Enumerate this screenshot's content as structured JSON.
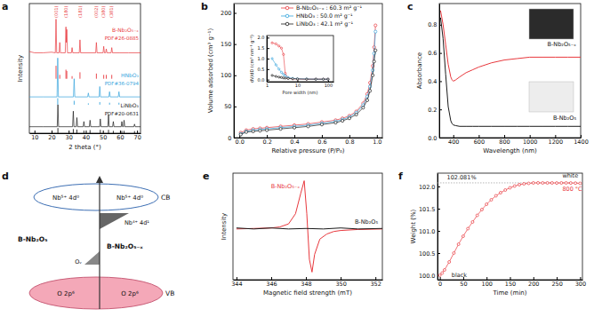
{
  "chart_data": [
    {
      "type": "line",
      "title": "a",
      "x_label": "2 theta (°)",
      "y_label": "Intensity",
      "xlim": [
        7,
        72
      ],
      "xticks": [
        10,
        20,
        30,
        40,
        50,
        60,
        70
      ],
      "ylim": [
        0,
        100
      ],
      "tick_labels": "x",
      "series": [
        {
          "name": "B-Nb₂O₅₋ₓ",
          "color": "#e8383d",
          "x": [
            7,
            10,
            15,
            20,
            22.2,
            22.6,
            23.0,
            24.4,
            24.8,
            25.2,
            26,
            28.0,
            28.4,
            28.65,
            28.9,
            29.3,
            31.6,
            32.0,
            32.4,
            36.2,
            36.6,
            37.0,
            45.8,
            46.2,
            46.6,
            50.1,
            50.5,
            50.9,
            51.6,
            52.0,
            52.4,
            54.8,
            55.2,
            55.6,
            60,
            65,
            72
          ],
          "values": [
            63,
            62,
            62,
            62.5,
            62,
            88,
            62,
            62,
            70,
            62,
            62,
            62,
            82,
            70,
            80,
            62,
            62,
            66,
            62,
            62,
            72,
            62,
            62,
            70,
            62,
            62,
            67,
            62,
            62,
            65,
            62,
            62,
            66,
            62,
            62,
            62,
            62
          ]
        },
        {
          "name": "HNbO₃",
          "color": "#35a4dc",
          "x": [
            7,
            15,
            23.2,
            23.6,
            24.0,
            32.8,
            33.2,
            33.6,
            41.1,
            41.5,
            41.9,
            47.8,
            48.2,
            48.6,
            53.5,
            53.9,
            54.3,
            59.0,
            59.4,
            59.8,
            72
          ],
          "values": [
            28,
            28,
            28,
            58,
            28,
            28,
            42,
            28,
            28,
            31,
            28,
            28,
            36,
            28,
            28,
            32,
            28,
            28,
            32,
            28,
            28
          ]
        },
        {
          "name": "LiNbO₃",
          "color": "#1a1a1a",
          "x": [
            7,
            15,
            23.3,
            23.7,
            24.1,
            32.3,
            32.7,
            33.1,
            34.4,
            34.8,
            35.2,
            38.5,
            38.9,
            39.3,
            42.1,
            42.5,
            42.9,
            48.1,
            48.5,
            48.9,
            52.9,
            53.3,
            53.7,
            55.7,
            56.1,
            56.5,
            60.7,
            61.1,
            61.5,
            62.0,
            62.4,
            62.8,
            68.1,
            68.5,
            68.9,
            72
          ],
          "values": [
            5,
            5,
            5,
            22,
            5,
            5,
            17,
            5,
            5,
            12,
            5,
            5,
            9,
            5,
            5,
            10,
            5,
            5,
            11,
            5,
            5,
            14,
            5,
            5,
            9,
            5,
            5,
            9,
            5,
            5,
            10,
            5,
            5,
            7,
            5,
            5
          ]
        }
      ],
      "references": [
        {
          "name": "PDF#26-0885",
          "color": "#e8383d",
          "base": 42,
          "x": [
            22.6,
            24.8,
            28.4,
            28.9,
            32.0,
            36.6,
            46.2,
            50.5,
            52.0,
            55.2
          ],
          "values": [
            52,
            45,
            49,
            48,
            44,
            47,
            46,
            45,
            45,
            45
          ]
        },
        {
          "name": "PDF#36-0794",
          "color": "#35a4dc",
          "base": 22,
          "x": [
            23.6,
            33.2,
            41.5,
            48.2,
            53.9,
            59.4
          ],
          "values": [
            27,
            25,
            23,
            24,
            23.5,
            23.5
          ]
        },
        {
          "name": "PDF#20-0631",
          "color": "#1a1a1a",
          "base": 0,
          "x": [
            23.7,
            32.7,
            34.8,
            38.9,
            42.5,
            48.5,
            53.3,
            56.1,
            61.1,
            62.4,
            68.5
          ],
          "values": [
            4,
            3.2,
            2.8,
            2,
            2.4,
            2.6,
            2.6,
            1.8,
            1.8,
            1.8,
            1.6
          ]
        }
      ],
      "annotations": [
        {
          "text": "(001)",
          "x": 22.6
        },
        {
          "text": "(180)",
          "x": 28.4
        },
        {
          "text": "(181)",
          "x": 36.6
        },
        {
          "text": "(002)",
          "x": 46.2
        },
        {
          "text": "(380)",
          "x": 50.5
        },
        {
          "text": "(381)",
          "x": 55.2
        }
      ]
    },
    {
      "type": "line",
      "title": "b",
      "x_label": "Relative pressure (P/P₀)",
      "y_label": "Volume adsorbed (cm³ g⁻¹)",
      "xlim": [
        -0.04,
        1.04
      ],
      "xticks": [
        {
          "value": 0,
          "label": "0.0"
        },
        0.2,
        0.4,
        0.6,
        0.8,
        {
          "value": 1,
          "label": "1.0"
        }
      ],
      "ylim": [
        0,
        215
      ],
      "yticks": [
        0,
        50,
        100,
        150,
        200
      ],
      "legend": "top",
      "x": [
        0.01,
        0.05,
        0.1,
        0.15,
        0.2,
        0.3,
        0.4,
        0.5,
        0.6,
        0.7,
        0.75,
        0.8,
        0.85,
        0.9,
        0.93,
        0.95,
        0.97,
        0.98,
        0.99
      ],
      "series": [
        {
          "name": "B-Nb₂O₅₋ₓ : 60.3 m² g⁻¹",
          "color": "#e8383d",
          "marker": "circle",
          "values": [
            8,
            12,
            14,
            15,
            16,
            18,
            20,
            22,
            25,
            28,
            31,
            35,
            42,
            55,
            70,
            88,
            115,
            145,
            180
          ]
        },
        {
          "name": "HNbO₃ : 50.0 m² g⁻¹",
          "color": "#35a4dc",
          "marker": "circle",
          "values": [
            6,
            10,
            12,
            13,
            14,
            16,
            18,
            20,
            23,
            26,
            29,
            33,
            40,
            52,
            66,
            82,
            108,
            135,
            170
          ]
        },
        {
          "name": "LiNbO₃ : 42.1 m² g⁻¹",
          "color": "#1a1a1a",
          "marker": "circle",
          "values": [
            5,
            9,
            10,
            11,
            12,
            14,
            16,
            18,
            21,
            24,
            27,
            31,
            37,
            48,
            60,
            75,
            100,
            122,
            140
          ]
        }
      ]
    },
    {
      "type": "line",
      "log": "x",
      "x_label": "Pore width (nm)",
      "y_label": "dV/dD (cm³ nm⁻¹ g⁻¹)",
      "xlim": [
        1,
        150
      ],
      "xticks": [
        1,
        10,
        100
      ],
      "ylim": [
        -0.1,
        2.1
      ],
      "yticks": [
        {
          "value": 0,
          "label": "0.0"
        },
        0.5,
        {
          "value": 1,
          "label": "1.0"
        },
        1.5,
        {
          "value": 2,
          "label": "2.0"
        }
      ],
      "x": [
        1.5,
        2,
        2.5,
        3,
        3.5,
        4,
        5,
        7,
        10,
        20,
        40,
        70,
        100
      ],
      "series": [
        {
          "color": "#e8383d",
          "marker": "circle",
          "values": [
            1.75,
            1.7,
            1.6,
            1.5,
            1.2,
            0.3,
            0.08,
            0.04,
            0.03,
            0.02,
            0.02,
            0.02,
            0.02
          ]
        },
        {
          "color": "#35a4dc",
          "marker": "circle",
          "values": [
            1.0,
            0.7,
            0.5,
            0.35,
            0.25,
            0.18,
            0.1,
            0.06,
            0.04,
            0.03,
            0.02,
            0.02,
            0.02
          ]
        },
        {
          "color": "#1a1a1a",
          "marker": "circle",
          "values": [
            0.2,
            0.15,
            0.12,
            0.1,
            0.08,
            0.07,
            0.05,
            0.04,
            0.03,
            0.02,
            0.02,
            0.02,
            0.02
          ]
        }
      ]
    },
    {
      "type": "line",
      "title": "c",
      "x_label": "Wavelength (nm)",
      "y_label": "Absorbance",
      "xlim": [
        290,
        1400
      ],
      "xticks": [
        400,
        600,
        800,
        1000,
        1200,
        1400
      ],
      "ylim": [
        0,
        0.95
      ],
      "yticks": [
        {
          "value": 0,
          "label": "0.0"
        },
        0.2,
        0.4,
        0.6,
        0.8
      ],
      "x": [
        300,
        320,
        340,
        360,
        380,
        390,
        400,
        420,
        450,
        500,
        550,
        600,
        700,
        800,
        900,
        1000,
        1100,
        1200,
        1300,
        1400
      ],
      "series": [
        {
          "name": "B-Nb₂O₅₋ₓ",
          "color": "#e8383d",
          "values": [
            0.9,
            0.8,
            0.66,
            0.52,
            0.43,
            0.41,
            0.4,
            0.41,
            0.43,
            0.46,
            0.48,
            0.5,
            0.53,
            0.55,
            0.56,
            0.57,
            0.57,
            0.57,
            0.57,
            0.57
          ]
        },
        {
          "name": "B-Nb₂O₅",
          "color": "#1a1a1a",
          "values": [
            0.85,
            0.7,
            0.45,
            0.22,
            0.12,
            0.1,
            0.09,
            0.085,
            0.08,
            0.08,
            0.08,
            0.08,
            0.08,
            0.08,
            0.08,
            0.08,
            0.08,
            0.08,
            0.08,
            0.08
          ]
        }
      ]
    },
    {
      "type": "line",
      "title": "e",
      "x_label": "Magnetic field strength (mT)",
      "y_label": "Intensity",
      "xlim": [
        343.8,
        352.4
      ],
      "xticks": [
        344,
        346,
        348,
        350,
        352
      ],
      "ylim": [
        -1,
        1.1
      ],
      "tick_labels": "x",
      "series": [
        {
          "name": "B-Nb₂O₅₋ₓ",
          "color": "#e8383d",
          "x": [
            344,
            345,
            346,
            346.5,
            347,
            347.4,
            347.7,
            347.9,
            348.05,
            348.2,
            348.35,
            348.5,
            348.8,
            349.2,
            349.6,
            350,
            351,
            352.4
          ],
          "values": [
            0,
            0.01,
            0.02,
            0.04,
            0.1,
            0.3,
            0.7,
            0.95,
            0.3,
            -0.6,
            -0.85,
            -0.5,
            -0.2,
            -0.1,
            -0.05,
            -0.03,
            -0.01,
            0
          ]
        },
        {
          "name": "B-Nb₂O₅",
          "color": "#1a1a1a",
          "x": [
            344,
            345,
            346,
            347,
            348,
            349,
            350,
            351,
            352.4
          ],
          "values": [
            0.02,
            0,
            0.02,
            0,
            0.01,
            0,
            0.02,
            0,
            0.01
          ]
        }
      ]
    },
    {
      "type": "line",
      "title": "f",
      "x_label": "Time (min)",
      "y_label": "Weight (%)",
      "xlim": [
        -5,
        305
      ],
      "xticks": [
        0,
        50,
        100,
        150,
        200,
        250,
        300
      ],
      "ylim": [
        99.9,
        102.3
      ],
      "yticks": [
        {
          "value": 100,
          "label": "100.0"
        },
        100.5,
        {
          "value": 101,
          "label": "101.0"
        },
        101.5,
        {
          "value": 102,
          "label": "102.0"
        }
      ],
      "hline": 102.081,
      "x": [
        0,
        5,
        10,
        20,
        30,
        40,
        50,
        60,
        70,
        80,
        90,
        100,
        110,
        120,
        130,
        140,
        150,
        160,
        170,
        180,
        190,
        200,
        210,
        220,
        230,
        240,
        250,
        260,
        270,
        280,
        290,
        300
      ],
      "series": [
        {
          "color": "#e8383d",
          "marker": "circle",
          "values": [
            100.0,
            100.05,
            100.12,
            100.3,
            100.5,
            100.7,
            100.88,
            101.05,
            101.2,
            101.35,
            101.48,
            101.6,
            101.7,
            101.79,
            101.86,
            101.92,
            101.97,
            102.01,
            102.04,
            102.06,
            102.07,
            102.08,
            102.081,
            102.08,
            102.08,
            102.08,
            102.078,
            102.08,
            102.08,
            102.078,
            102.075,
            102.07
          ]
        }
      ],
      "annotations": [
        {
          "text": "102.081%",
          "x": 15,
          "y": 102.16,
          "color": "#1a1a1a"
        },
        {
          "text": "white",
          "x": 262,
          "y": 102.2,
          "color": "#1a1a1a"
        },
        {
          "text": "800 °C",
          "x": 262,
          "y": 101.9,
          "color": "#e8383d"
        },
        {
          "text": "black",
          "x": 25,
          "y": 99.96,
          "color": "#1a1a1a"
        }
      ]
    }
  ],
  "diagram": {
    "title": "d",
    "cb": {
      "label": "CB",
      "states": [
        "Nb⁵⁺ 4d⁰",
        "Nb⁵⁺ 4d⁰"
      ]
    },
    "vb": {
      "label": "VB",
      "states": [
        "O 2p⁶",
        "O 2p⁶"
      ]
    },
    "defect_states": [
      "Nb⁴⁺ 4d¹",
      "Oᵥ"
    ],
    "materials": [
      "B-Nb₂O₅",
      "B-Nb₂O₅₋ₓ"
    ]
  }
}
